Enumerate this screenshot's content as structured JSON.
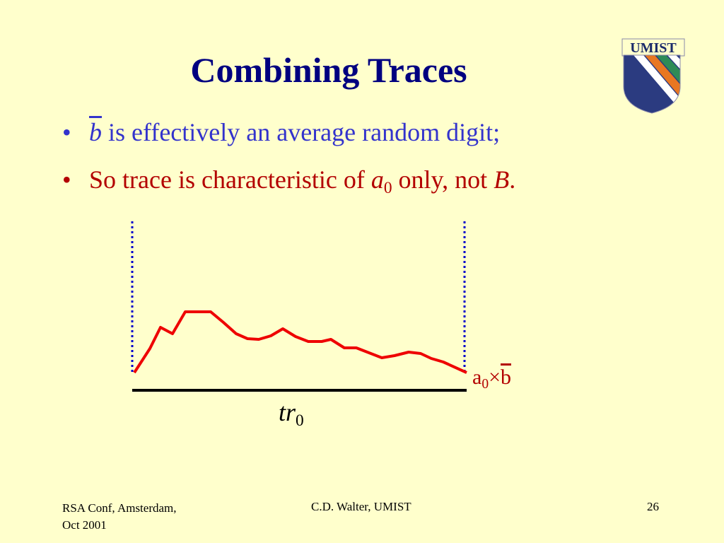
{
  "header": {
    "title": "Combining Traces",
    "logo": "UMIST"
  },
  "bullets": [
    {
      "parts": [
        "b",
        " is effectively an average random digit;"
      ]
    },
    {
      "parts": [
        "So trace is characteristic of ",
        "a",
        "0",
        " only, not ",
        "B",
        "."
      ]
    }
  ],
  "diagram": {
    "curve_label": [
      "a",
      "0",
      "×",
      "b"
    ],
    "axis_label": [
      "tr",
      "0"
    ]
  },
  "footer": {
    "left": [
      "RSA Conf, Amsterdam,",
      "Oct 2001"
    ],
    "center": "C.D. Walter, UMIST",
    "page": "26"
  }
}
